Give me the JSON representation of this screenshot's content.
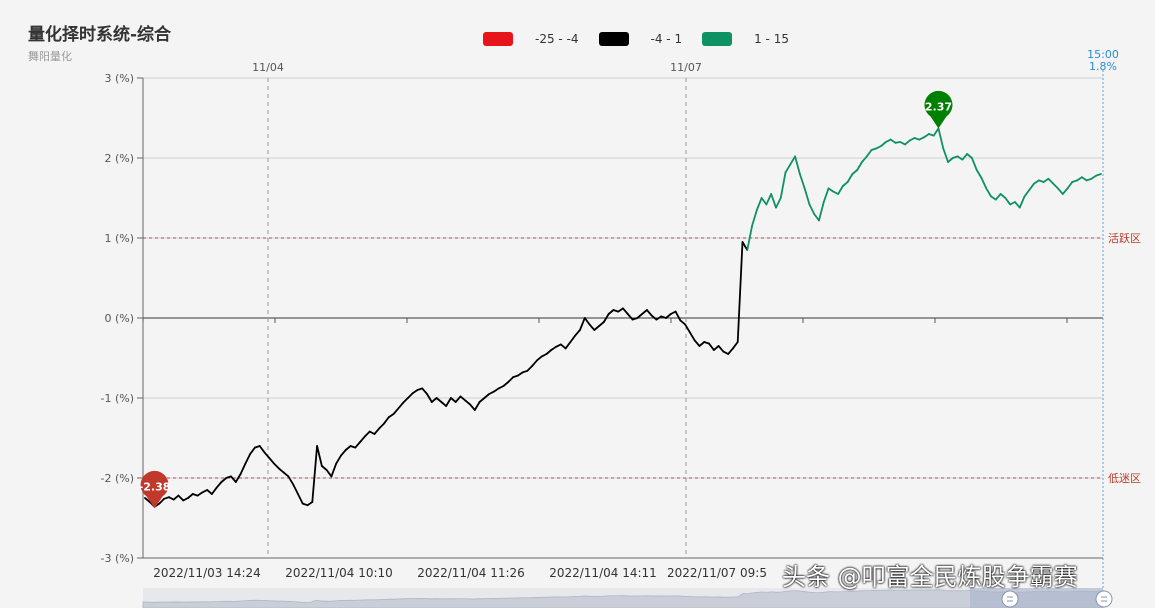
{
  "title": "量化择时系统-综合",
  "subtitle": "舞阳量化",
  "legend": [
    {
      "label": "-25 - -4",
      "color": "#e8141b"
    },
    {
      "label": "-4 - 1",
      "color": "#000000"
    },
    {
      "label": "1 - 15",
      "color": "#0e9163"
    }
  ],
  "watermark": "头条 @叩富全民炼股争霸赛",
  "chart_data": {
    "type": "line",
    "title": "量化择时系统-综合",
    "ylabel": "%",
    "ylim": [
      -3,
      3
    ],
    "yticks": [
      "3 (%)",
      "2 (%)",
      "1 (%)",
      "0 (%)",
      "-1 (%)",
      "-2 (%)",
      "-3 (%)"
    ],
    "xticks": [
      "2022/11/03 14:24",
      "2022/11/04 10:10",
      "2022/11/04 11:26",
      "2022/11/04 14:11",
      "2022/11/07 09:5"
    ],
    "day_markers": [
      "11/04",
      "11/07"
    ],
    "last_time": "15:00",
    "last_value": "1.8%",
    "thresholds": [
      {
        "value": 1,
        "label": "活跃区"
      },
      {
        "value": -2,
        "label": "低迷区"
      }
    ],
    "max_marker": {
      "value": 2.37,
      "label": "2.37"
    },
    "min_marker": {
      "value": -2.38,
      "label": "-2.38"
    },
    "series": [
      {
        "values": [
          -2.25,
          -2.3,
          -2.36,
          -2.32,
          -2.26,
          -2.24,
          -2.27,
          -2.22,
          -2.28,
          -2.25,
          -2.2,
          -2.22,
          -2.18,
          -2.15,
          -2.2,
          -2.12,
          -2.05,
          -2.0,
          -1.98,
          -2.05,
          -1.95,
          -1.82,
          -1.7,
          -1.62,
          -1.6,
          -1.68,
          -1.75,
          -1.82,
          -1.88,
          -1.93,
          -1.98,
          -2.08,
          -2.2,
          -2.32,
          -2.34,
          -2.3,
          -1.6,
          -1.85,
          -1.9,
          -1.98,
          -1.82,
          -1.72,
          -1.65,
          -1.6,
          -1.62,
          -1.55,
          -1.48,
          -1.42,
          -1.45,
          -1.38,
          -1.32,
          -1.24,
          -1.2,
          -1.13,
          -1.06,
          -1.0,
          -0.94,
          -0.9,
          -0.88,
          -0.95,
          -1.05,
          -1.0,
          -1.05,
          -1.1,
          -1.0,
          -1.05,
          -0.98,
          -1.03,
          -1.08,
          -1.15,
          -1.05,
          -1.0,
          -0.95,
          -0.92,
          -0.88,
          -0.85,
          -0.8,
          -0.74,
          -0.72,
          -0.68,
          -0.66,
          -0.6,
          -0.53,
          -0.48,
          -0.45,
          -0.4,
          -0.36,
          -0.33,
          -0.38,
          -0.3,
          -0.22,
          -0.15,
          0.0,
          -0.08,
          -0.15,
          -0.1,
          -0.05,
          0.05,
          0.1,
          0.08,
          0.12,
          0.05,
          -0.02,
          0.0,
          0.05,
          0.1,
          0.03,
          -0.02,
          0.02,
          0.0,
          0.05,
          0.08,
          -0.03,
          -0.08,
          -0.18,
          -0.28,
          -0.35,
          -0.3,
          -0.32,
          -0.4,
          -0.35,
          -0.42,
          -0.45,
          -0.38,
          -0.3,
          0.95,
          0.85,
          1.15,
          1.35,
          1.5,
          1.42,
          1.55,
          1.38,
          1.5,
          1.82,
          1.92,
          2.02,
          1.8,
          1.62,
          1.42,
          1.3,
          1.22,
          1.45,
          1.62,
          1.58,
          1.55,
          1.65,
          1.7,
          1.8,
          1.85,
          1.95,
          2.02,
          2.1,
          2.12,
          2.15,
          2.2,
          2.23,
          2.19,
          2.2,
          2.17,
          2.22,
          2.25,
          2.23,
          2.26,
          2.3,
          2.28,
          2.37,
          2.12,
          1.95,
          2.0,
          2.02,
          1.98,
          2.05,
          2.0,
          1.85,
          1.75,
          1.62,
          1.52,
          1.48,
          1.55,
          1.5,
          1.42,
          1.45,
          1.38,
          1.52,
          1.6,
          1.68,
          1.72,
          1.7,
          1.74,
          1.68,
          1.62,
          1.55,
          1.62,
          1.7,
          1.72,
          1.76,
          1.72,
          1.74,
          1.78,
          1.8
        ]
      }
    ]
  }
}
